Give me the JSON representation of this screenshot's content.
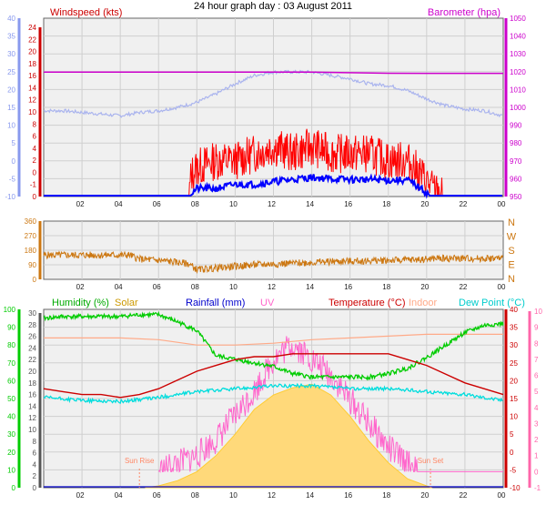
{
  "title": "24 hour graph day : 03 August 2011",
  "colors": {
    "windspeed": "#ff0000",
    "windavg": "#0000ff",
    "barometer": "#cc00cc",
    "bar_line": "#aab4ee",
    "direction": "#cc7711",
    "humidity": "#00cc00",
    "solar": "#ffcc33",
    "solar_fill": "#ffd97a",
    "rainfall": "#0000cc",
    "uv": "#ff66cc",
    "temperature": "#cc0000",
    "indoor": "#ffaa88",
    "dewpoint": "#00dddd",
    "sun_marker": "#ff8866",
    "axis_left_top": "#8899ee",
    "axis_right_top": "#cc00cc",
    "axis_dir": "#cc7711",
    "axis_left_bottom": "#00cc00",
    "axis_right_bottom": "#ff66aa"
  },
  "chart_data": [
    {
      "type": "line",
      "panel": "top",
      "labels": {
        "left": "Windspeed (kts)",
        "right": "Barometer (hpa)"
      },
      "x_ticks": [
        "02",
        "04",
        "06",
        "08",
        "10",
        "12",
        "14",
        "16",
        "18",
        "20",
        "22",
        "00"
      ],
      "left_outer_ticks": [
        "-10",
        "-5",
        "0",
        "5",
        "10",
        "15",
        "20",
        "25",
        "30",
        "35",
        "40"
      ],
      "left_inner_ticks": [
        "0",
        "-1",
        "0",
        "2",
        "4",
        "6",
        "8",
        "10",
        "12",
        "14",
        "16",
        "18",
        "20",
        "22",
        "24"
      ],
      "right_ticks": [
        "950",
        "960",
        "970",
        "980",
        "990",
        "1000",
        "1010",
        "1020",
        "1030",
        "1040",
        "1050"
      ],
      "xlim": [
        0,
        24
      ],
      "barometer_ylim": [
        947,
        1053
      ],
      "series": [
        {
          "name": "Windspeed (kts)",
          "x": [
            0,
            7.6,
            7.7,
            8,
            9,
            10,
            11,
            12,
            13,
            14,
            15,
            16,
            17,
            18,
            19,
            19.7,
            20.3,
            20.8,
            24
          ],
          "values": [
            0,
            0,
            3,
            4,
            5,
            5,
            6,
            7,
            6,
            7,
            6,
            6,
            6,
            5,
            5,
            3,
            1,
            0,
            0
          ]
        },
        {
          "name": "Windspeed avg",
          "x": [
            0,
            7.6,
            7.7,
            8,
            9,
            10,
            11,
            12,
            13,
            14,
            15,
            16,
            17,
            18,
            19,
            19.7,
            20.2,
            24
          ],
          "values": [
            0,
            0,
            0.3,
            1,
            1,
            1.6,
            1.6,
            2,
            2.3,
            2.6,
            2.4,
            2.3,
            2.3,
            2.2,
            2.2,
            1,
            0,
            0
          ]
        },
        {
          "name": "Barometer (hpa)",
          "x": [
            0,
            6,
            8,
            10,
            12,
            14,
            16,
            18,
            20,
            22,
            24
          ],
          "values": [
            1021,
            1021,
            1021,
            1021,
            1021,
            1021,
            1020.6,
            1020.3,
            1020.2,
            1020.2,
            1020.2
          ]
        },
        {
          "name": "Barometer trace",
          "x": [
            0,
            1,
            2,
            3,
            4,
            5,
            6,
            7,
            8,
            9,
            10,
            11,
            12,
            13,
            14,
            15,
            16,
            17,
            18,
            19,
            20,
            21,
            22,
            23,
            24
          ],
          "values": [
            998,
            998,
            997,
            996,
            995,
            997,
            998,
            1000,
            1003,
            1008,
            1014,
            1019,
            1021,
            1021,
            1021,
            1019,
            1017,
            1014,
            1013,
            1010,
            1005,
            1001,
            999,
            998,
            995
          ]
        }
      ]
    },
    {
      "type": "line",
      "panel": "direction",
      "x_ticks": [
        "02",
        "04",
        "06",
        "08",
        "10",
        "12",
        "14",
        "16",
        "18",
        "20",
        "22",
        "00"
      ],
      "y_ticks": [
        "0",
        "90",
        "180",
        "270",
        "360"
      ],
      "compass": [
        "N",
        "W",
        "S",
        "E",
        "N"
      ],
      "ylim": [
        0,
        360
      ],
      "series": [
        {
          "name": "Wind direction",
          "x": [
            0,
            4.5,
            5,
            6,
            7,
            7.6,
            8,
            9,
            10,
            11,
            12,
            13,
            14,
            15,
            16,
            17,
            18,
            19,
            20,
            20.5,
            24
          ],
          "values": [
            150,
            150,
            125,
            118,
            105,
            95,
            60,
            70,
            80,
            90,
            95,
            100,
            105,
            110,
            112,
            115,
            118,
            120,
            125,
            130,
            130
          ]
        }
      ]
    },
    {
      "type": "line",
      "panel": "bottom",
      "labels": [
        "Humidity (%)",
        "Solar",
        "Rainfall (mm)",
        "UV",
        "Temperature (°C)",
        "Indoor",
        "Dew Point (°C)"
      ],
      "annotations": [
        "Sun Rise",
        "Sun Set"
      ],
      "x_ticks": [
        "02",
        "04",
        "06",
        "08",
        "10",
        "12",
        "14",
        "16",
        "18",
        "20",
        "22",
        "00"
      ],
      "humidity_ticks": [
        "0",
        "10",
        "20",
        "30",
        "40",
        "50",
        "60",
        "70",
        "80",
        "90",
        "100"
      ],
      "temp_ticks": [
        "0",
        "2",
        "4",
        "6",
        "8",
        "10",
        "12",
        "14",
        "16",
        "18",
        "20",
        "22",
        "24",
        "26",
        "28",
        "30"
      ],
      "right_temp_ticks": [
        "-10",
        "-5",
        "0",
        "5",
        "10",
        "15",
        "20",
        "25",
        "30",
        "35",
        "40"
      ],
      "uv_ticks": [
        "-1",
        "0",
        "1",
        "2",
        "3",
        "4",
        "5",
        "6",
        "7",
        "8",
        "9",
        "10"
      ],
      "xlim": [
        0,
        24
      ],
      "sun_rise_x": 5.0,
      "sun_set_x": 20.2,
      "series": [
        {
          "name": "Humidity (%)",
          "x": [
            0,
            1,
            2,
            3,
            4,
            5,
            6,
            7,
            8,
            9,
            10,
            11,
            12,
            13,
            14,
            15,
            16,
            17,
            18,
            19,
            20,
            21,
            22,
            23,
            24
          ],
          "values": [
            95,
            96,
            96,
            96,
            96,
            97,
            97,
            93,
            88,
            74,
            72,
            70,
            68,
            64,
            62,
            62,
            62,
            62,
            64,
            67,
            73,
            80,
            87,
            91,
            92
          ]
        },
        {
          "name": "Indoor",
          "x": [
            0,
            2,
            4,
            6,
            8,
            10,
            12,
            14,
            16,
            18,
            20,
            22,
            24
          ],
          "values": [
            84,
            84,
            84,
            83,
            80,
            80,
            81,
            83,
            84,
            85,
            86,
            86,
            86
          ]
        },
        {
          "name": "Temperature (°C)",
          "x": [
            0,
            1,
            2,
            3,
            4,
            5,
            6,
            7,
            8,
            9,
            10,
            11,
            12,
            13,
            14,
            15,
            16,
            17,
            18,
            19,
            20,
            21,
            22,
            23,
            24
          ],
          "values": [
            17,
            16.5,
            16,
            16,
            15.5,
            16,
            17,
            18.5,
            20,
            21,
            22,
            22.5,
            22.5,
            23,
            23,
            23,
            23,
            23,
            23,
            22,
            21,
            19.5,
            18,
            17,
            16
          ]
        },
        {
          "name": "Dew Point (°C)",
          "x": [
            0,
            2,
            4,
            6,
            8,
            10,
            12,
            14,
            16,
            18,
            20,
            22,
            24
          ],
          "values": [
            15.5,
            15,
            14.8,
            15.5,
            16.5,
            17,
            17.5,
            17.5,
            17,
            17,
            16.5,
            16,
            15
          ]
        },
        {
          "name": "Solar",
          "x": [
            5.3,
            6,
            7,
            8,
            9,
            10,
            11,
            12,
            13,
            14,
            15,
            16,
            17,
            18,
            19,
            20,
            20.3
          ],
          "values": [
            0,
            1,
            4,
            9,
            18,
            30,
            44,
            52,
            56,
            58,
            52,
            40,
            26,
            14,
            5,
            1,
            0
          ]
        },
        {
          "name": "UV",
          "x": [
            6,
            7,
            8,
            9,
            10,
            11,
            11.5,
            12,
            12.5,
            13,
            13.5,
            14,
            15,
            16,
            17,
            18,
            19,
            19.5,
            24
          ],
          "values": [
            0,
            0.5,
            1,
            2,
            3.5,
            5,
            6,
            7,
            7.5,
            8,
            7.5,
            7,
            6,
            4.5,
            3,
            1.5,
            0.5,
            0,
            0
          ]
        },
        {
          "name": "Rainfall (mm)",
          "x": [
            0,
            24
          ],
          "values": [
            0,
            0
          ]
        }
      ]
    }
  ]
}
